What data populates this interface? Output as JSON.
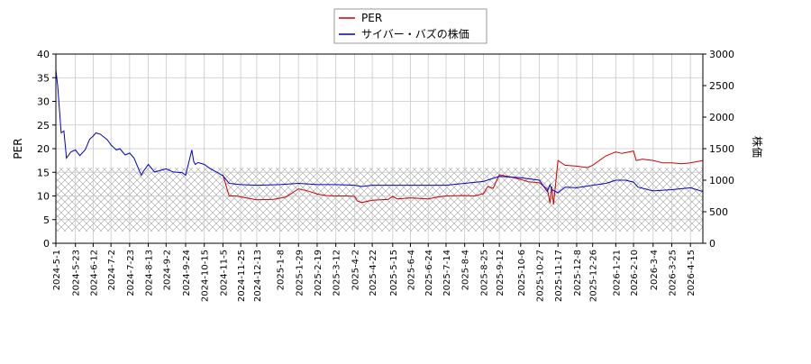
{
  "chart_data": {
    "type": "line",
    "legend": {
      "placement": "top-center"
    },
    "grid": true,
    "hatched_band": {
      "axis": "y-left",
      "range": [
        2.5,
        16
      ],
      "color": "#b0b0b0"
    },
    "axes": {
      "y_left": {
        "label": "PER",
        "ylim": [
          0,
          40
        ],
        "ticks": [
          0,
          5,
          10,
          15,
          20,
          25,
          30,
          35,
          40
        ]
      },
      "y_right": {
        "label": "株価",
        "ylim": [
          0,
          3000
        ],
        "ticks": [
          0,
          500,
          1000,
          1500,
          2000,
          2500,
          3000
        ]
      },
      "x": {
        "xlim": [
          "2024-05-01",
          "2026-04-29"
        ],
        "tick_labels": [
          "2024-5-1",
          "2024-5-23",
          "2024-6-12",
          "2024-7-2",
          "2024-7-23",
          "2024-8-13",
          "2024-9-2",
          "2024-9-24",
          "2024-10-15",
          "2024-11-5",
          "2024-11-25",
          "2024-12-13",
          "2025-1-8",
          "2025-1-29",
          "2025-2-19",
          "2025-3-12",
          "2025-4-2",
          "2025-4-22",
          "2025-5-15",
          "2025-6-4",
          "2025-6-24",
          "2025-7-14",
          "2025-8-4",
          "2025-8-25",
          "2025-9-12",
          "2025-10-6",
          "2025-10-27",
          "2025-11-17",
          "2025-12-8",
          "2025-12-26",
          "2026-1-21",
          "2026-2-10",
          "2026-3-4",
          "2026-3-25",
          "2026-4-15"
        ],
        "tick_dates": [
          "2024-05-01",
          "2024-05-23",
          "2024-06-12",
          "2024-07-02",
          "2024-07-23",
          "2024-08-13",
          "2024-09-02",
          "2024-09-24",
          "2024-10-15",
          "2024-11-05",
          "2024-11-25",
          "2024-12-13",
          "2025-01-08",
          "2025-01-29",
          "2025-02-19",
          "2025-03-12",
          "2025-04-02",
          "2025-04-22",
          "2025-05-15",
          "2025-06-04",
          "2025-06-24",
          "2025-07-14",
          "2025-08-04",
          "2025-08-25",
          "2025-09-12",
          "2025-10-06",
          "2025-10-27",
          "2025-11-17",
          "2025-12-08",
          "2025-12-26",
          "2026-01-21",
          "2026-02-10",
          "2026-03-04",
          "2026-03-25",
          "2026-04-15"
        ]
      }
    },
    "series": [
      {
        "name": "PER",
        "axis": "left",
        "color": "#cc0000",
        "x": [
          "2024-11-05",
          "2024-11-08",
          "2024-11-12",
          "2024-11-20",
          "2024-12-01",
          "2024-12-13",
          "2025-01-01",
          "2025-01-15",
          "2025-01-29",
          "2025-02-10",
          "2025-02-19",
          "2025-03-01",
          "2025-03-12",
          "2025-03-25",
          "2025-04-02",
          "2025-04-05",
          "2025-04-10",
          "2025-04-22",
          "2025-05-10",
          "2025-05-15",
          "2025-05-20",
          "2025-06-04",
          "2025-06-24",
          "2025-07-05",
          "2025-07-14",
          "2025-08-04",
          "2025-08-15",
          "2025-08-25",
          "2025-08-30",
          "2025-09-05",
          "2025-09-12",
          "2025-09-25",
          "2025-10-06",
          "2025-10-15",
          "2025-10-27",
          "2025-11-05",
          "2025-11-08",
          "2025-11-10",
          "2025-11-12",
          "2025-11-17",
          "2025-11-25",
          "2025-12-08",
          "2025-12-20",
          "2025-12-26",
          "2026-01-10",
          "2026-01-21",
          "2026-01-28",
          "2026-02-10",
          "2026-02-13",
          "2026-02-20",
          "2026-03-04",
          "2026-03-15",
          "2026-03-25",
          "2026-04-05",
          "2026-04-15",
          "2026-04-29"
        ],
        "y": [
          14.5,
          12.5,
          10.0,
          10.0,
          9.6,
          9.2,
          9.3,
          9.8,
          11.5,
          11.0,
          10.4,
          10.1,
          10.0,
          10.0,
          9.9,
          9.0,
          8.6,
          9.1,
          9.3,
          9.9,
          9.4,
          9.6,
          9.4,
          9.8,
          10.0,
          10.1,
          10.0,
          10.5,
          12.0,
          11.6,
          14.5,
          14.0,
          13.5,
          13.0,
          12.8,
          11.5,
          8.5,
          12.0,
          8.2,
          17.5,
          16.5,
          16.3,
          16.0,
          16.5,
          18.5,
          19.3,
          19.0,
          19.5,
          17.5,
          17.8,
          17.5,
          17.0,
          17.0,
          16.8,
          17.0,
          17.5
        ]
      },
      {
        "name": "サイバー・バズの株価",
        "axis": "right",
        "color": "#0000cc",
        "x": [
          "2024-05-01",
          "2024-05-03",
          "2024-05-07",
          "2024-05-10",
          "2024-05-13",
          "2024-05-18",
          "2024-05-23",
          "2024-05-28",
          "2024-06-03",
          "2024-06-08",
          "2024-06-12",
          "2024-06-15",
          "2024-06-20",
          "2024-06-28",
          "2024-07-02",
          "2024-07-08",
          "2024-07-12",
          "2024-07-18",
          "2024-07-23",
          "2024-07-28",
          "2024-08-05",
          "2024-08-08",
          "2024-08-13",
          "2024-08-20",
          "2024-09-02",
          "2024-09-10",
          "2024-09-20",
          "2024-09-24",
          "2024-10-01",
          "2024-10-03",
          "2024-10-05",
          "2024-10-08",
          "2024-10-15",
          "2024-10-22",
          "2024-10-30",
          "2024-11-05",
          "2024-11-12",
          "2024-11-25",
          "2024-12-13",
          "2025-01-08",
          "2025-01-29",
          "2025-02-19",
          "2025-03-12",
          "2025-04-02",
          "2025-04-10",
          "2025-04-22",
          "2025-05-15",
          "2025-06-04",
          "2025-06-24",
          "2025-07-14",
          "2025-08-04",
          "2025-08-25",
          "2025-09-12",
          "2025-10-06",
          "2025-10-27",
          "2025-11-05",
          "2025-11-08",
          "2025-11-10",
          "2025-11-17",
          "2025-11-25",
          "2025-12-08",
          "2025-12-26",
          "2026-01-10",
          "2026-01-21",
          "2026-02-01",
          "2026-02-10",
          "2026-02-15",
          "2026-03-04",
          "2026-03-25",
          "2026-04-15",
          "2026-04-29"
        ],
        "y": [
          2750,
          2500,
          1750,
          1780,
          1350,
          1450,
          1480,
          1390,
          1480,
          1650,
          1700,
          1750,
          1730,
          1640,
          1560,
          1480,
          1500,
          1400,
          1430,
          1350,
          1080,
          1150,
          1250,
          1130,
          1180,
          1130,
          1120,
          1080,
          1480,
          1300,
          1250,
          1280,
          1250,
          1180,
          1120,
          1070,
          950,
          930,
          920,
          930,
          950,
          930,
          930,
          920,
          900,
          920,
          920,
          920,
          920,
          920,
          950,
          980,
          1060,
          1040,
          1000,
          820,
          930,
          850,
          800,
          890,
          880,
          920,
          950,
          1000,
          1000,
          970,
          890,
          830,
          850,
          880,
          820
        ]
      }
    ]
  }
}
